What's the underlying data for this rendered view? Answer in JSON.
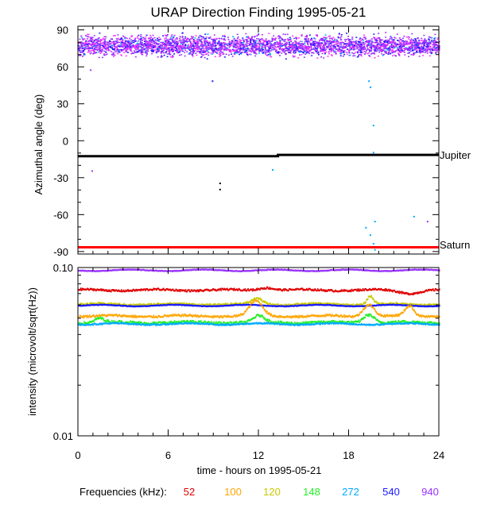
{
  "chart_data": [
    {
      "type": "scatter",
      "title": "URAP Direction Finding  1995-05-21",
      "xlabel": "",
      "ylabel": "Azimuthal angle (deg)",
      "xlim": [
        0,
        24
      ],
      "ylim": [
        -92,
        93
      ],
      "y_ticks": [
        90,
        60,
        30,
        0,
        -30,
        -60,
        -90
      ],
      "y_tick_labels": [
        "90",
        "60",
        "30",
        "0",
        "-30",
        "-60",
        "-90"
      ],
      "band": {
        "y_min": 66,
        "y_max": 89,
        "colors": [
          "#9a33ff",
          "#ff33ff",
          "#1a1aff",
          "#00aaff"
        ]
      },
      "reference_lines": [
        {
          "label": "Jupiter",
          "color": "#000000",
          "points": [
            [
              0,
              -12.5
            ],
            [
              13.3,
              -12.5
            ],
            [
              13.3,
              -11.5
            ],
            [
              24,
              -11.5
            ]
          ]
        },
        {
          "label": "Saturn",
          "color": "#ff0000",
          "points": [
            [
              0,
              -86.5
            ],
            [
              24,
              -86.5
            ]
          ]
        }
      ],
      "outliers": [
        {
          "x": 0.8,
          "y": 58,
          "color": "#9a33ff"
        },
        {
          "x": 0.9,
          "y": -24,
          "color": "#9a33ff"
        },
        {
          "x": 8.9,
          "y": 49,
          "color": "#1a1aff"
        },
        {
          "x": 9.4,
          "y": -34,
          "color": "#000000"
        },
        {
          "x": 9.4,
          "y": -39,
          "color": "#000000"
        },
        {
          "x": 12.9,
          "y": -23,
          "color": "#00aaff"
        },
        {
          "x": 19.1,
          "y": -70,
          "color": "#00aaff"
        },
        {
          "x": 19.3,
          "y": 49,
          "color": "#00aaff"
        },
        {
          "x": 19.4,
          "y": 44,
          "color": "#00aaff"
        },
        {
          "x": 19.6,
          "y": 13,
          "color": "#00aaff"
        },
        {
          "x": 19.6,
          "y": -9,
          "color": "#00aaff"
        },
        {
          "x": 19.7,
          "y": -65,
          "color": "#00aaff"
        },
        {
          "x": 19.4,
          "y": -76,
          "color": "#00aaff"
        },
        {
          "x": 19.6,
          "y": -83,
          "color": "#00aaff"
        },
        {
          "x": 19.7,
          "y": -88,
          "color": "#00aaff"
        },
        {
          "x": 22.3,
          "y": -61,
          "color": "#00aaff"
        },
        {
          "x": 23.2,
          "y": -65,
          "color": "#9a33ff"
        }
      ]
    },
    {
      "type": "line",
      "title": "",
      "xlabel": "time - hours on 1995-05-21",
      "ylabel": "intensity (microvolt/sqrt(Hz))",
      "xlim": [
        0,
        24
      ],
      "ylim": [
        0.01,
        0.1
      ],
      "yscale": "log",
      "x_ticks": [
        0,
        6,
        12,
        18,
        24
      ],
      "x_tick_labels": [
        "0",
        "6",
        "12",
        "18",
        "24"
      ],
      "y_tick_labels": [
        "0.10",
        "0.01"
      ],
      "series": [
        {
          "name": "940",
          "color": "#9a33ff",
          "base": 0.0963,
          "jitter": 0.004,
          "bumps": []
        },
        {
          "name": "52",
          "color": "#e00000",
          "base": 0.0735,
          "jitter": 0.012,
          "bumps": [
            [
              12.5,
              0.7,
              0.04
            ],
            [
              22.0,
              0.9,
              -0.04
            ]
          ]
        },
        {
          "name": "120",
          "color": "#c8c800",
          "base": 0.0605,
          "jitter": 0.012,
          "bumps": [
            [
              11.9,
              0.5,
              0.08
            ],
            [
              19.4,
              0.3,
              0.12
            ]
          ]
        },
        {
          "name": "540",
          "color": "#1a1aff",
          "base": 0.0595,
          "jitter": 0.004,
          "bumps": []
        },
        {
          "name": "100",
          "color": "#ffa500",
          "base": 0.0515,
          "jitter": 0.014,
          "bumps": [
            [
              11.8,
              0.6,
              0.22
            ],
            [
              19.3,
              0.5,
              0.18
            ],
            [
              22.0,
              0.4,
              0.14
            ]
          ]
        },
        {
          "name": "148",
          "color": "#22ee22",
          "base": 0.0472,
          "jitter": 0.016,
          "bumps": [
            [
              1.4,
              0.4,
              0.06
            ],
            [
              12.0,
              0.5,
              0.09
            ],
            [
              19.3,
              0.5,
              0.12
            ]
          ]
        },
        {
          "name": "272",
          "color": "#00aaff",
          "base": 0.0462,
          "jitter": 0.008,
          "bumps": []
        }
      ]
    }
  ],
  "legend": {
    "label": "Frequencies (kHz):",
    "items": [
      {
        "text": "52",
        "color": "#e00000"
      },
      {
        "text": "100",
        "color": "#ffa500"
      },
      {
        "text": "120",
        "color": "#c8c800"
      },
      {
        "text": "148",
        "color": "#22ee22"
      },
      {
        "text": "272",
        "color": "#00aaff"
      },
      {
        "text": "540",
        "color": "#1a1aff"
      },
      {
        "text": "940",
        "color": "#9a33ff"
      }
    ]
  }
}
